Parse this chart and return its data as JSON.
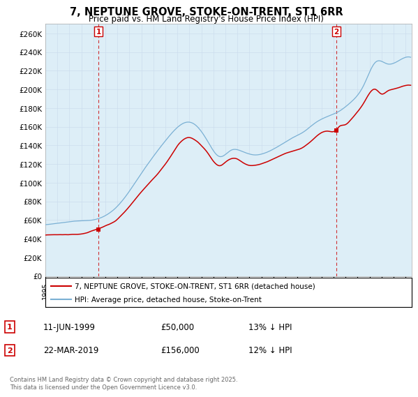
{
  "title": "7, NEPTUNE GROVE, STOKE-ON-TRENT, ST1 6RR",
  "subtitle": "Price paid vs. HM Land Registry's House Price Index (HPI)",
  "ylabel_ticks": [
    "£0",
    "£20K",
    "£40K",
    "£60K",
    "£80K",
    "£100K",
    "£120K",
    "£140K",
    "£160K",
    "£180K",
    "£200K",
    "£220K",
    "£240K",
    "£260K"
  ],
  "ytick_vals": [
    0,
    20000,
    40000,
    60000,
    80000,
    100000,
    120000,
    140000,
    160000,
    180000,
    200000,
    220000,
    240000,
    260000
  ],
  "ylim": [
    0,
    270000
  ],
  "xlim_start": 1995.0,
  "xlim_end": 2025.5,
  "legend_line1": "7, NEPTUNE GROVE, STOKE-ON-TRENT, ST1 6RR (detached house)",
  "legend_line2": "HPI: Average price, detached house, Stoke-on-Trent",
  "red_color": "#cc0000",
  "blue_color": "#7ab0d4",
  "blue_fill": "#ddeef7",
  "marker1_x": 1999.44,
  "marker1_y": 50000,
  "marker2_x": 2019.22,
  "marker2_y": 156000,
  "annotation1": "11-JUN-1999",
  "annotation1_price": "£50,000",
  "annotation1_hpi": "13% ↓ HPI",
  "annotation2": "22-MAR-2019",
  "annotation2_price": "£156,000",
  "annotation2_hpi": "12% ↓ HPI",
  "footer": "Contains HM Land Registry data © Crown copyright and database right 2025.\nThis data is licensed under the Open Government Licence v3.0.",
  "background_color": "#ffffff",
  "grid_color": "#ccddee"
}
